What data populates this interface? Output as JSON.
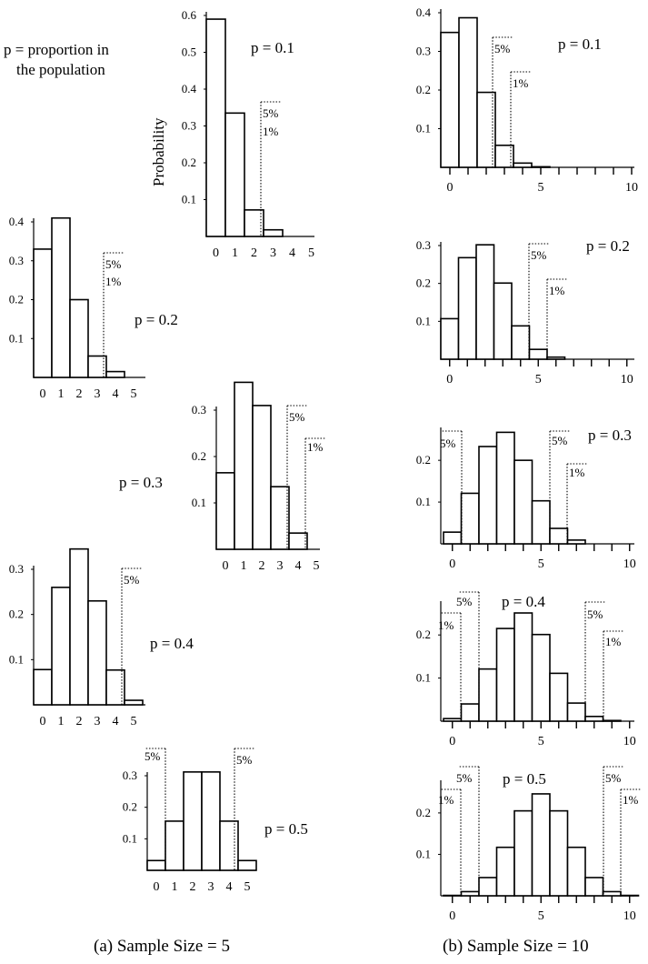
{
  "note": {
    "line1": "p = proportion in",
    "line2": "the population"
  },
  "ylabel": "Probability",
  "captions": {
    "a": "(a) Sample Size = 5",
    "b": "(b) Sample Size = 10"
  },
  "chart_data": [
    {
      "type": "bar",
      "n": 5,
      "p_label": "p = 0.1",
      "categories": [
        0,
        1,
        2,
        3,
        4,
        5
      ],
      "values": [
        0.59,
        0.335,
        0.072,
        0.018,
        0.0,
        0.0
      ],
      "yticks": [
        "0.1",
        "0.2",
        "0.3",
        "0.4",
        "0.5",
        "0.6"
      ],
      "ymax": 0.6,
      "xticks": [
        "0",
        "1",
        "2",
        "3",
        "4",
        "5"
      ],
      "cutoffs": [
        {
          "side": "right",
          "labels": [
            "5%",
            "1%"
          ]
        }
      ]
    },
    {
      "type": "bar",
      "n": 5,
      "p_label": "p = 0.2",
      "categories": [
        0,
        1,
        2,
        3,
        4,
        5
      ],
      "values": [
        0.33,
        0.41,
        0.2,
        0.055,
        0.015,
        0.0
      ],
      "yticks": [
        "0.1",
        "0.2",
        "0.3",
        "0.4"
      ],
      "ymax": 0.4,
      "xticks": [
        "0",
        "1",
        "2",
        "3",
        "4",
        "5"
      ],
      "cutoffs": [
        {
          "side": "right",
          "labels": [
            "5%",
            "1%"
          ]
        }
      ]
    },
    {
      "type": "bar",
      "n": 5,
      "p_label": "p = 0.3",
      "categories": [
        0,
        1,
        2,
        3,
        4,
        5
      ],
      "values": [
        0.165,
        0.36,
        0.31,
        0.135,
        0.035,
        0.0
      ],
      "yticks": [
        "0.1",
        "0.2",
        "0.3"
      ],
      "ymax": 0.3,
      "xticks": [
        "0",
        "1",
        "2",
        "3",
        "4",
        "5"
      ],
      "cutoffs": [
        {
          "side": "right",
          "labels": [
            "5%"
          ]
        },
        {
          "side": "right",
          "labels": [
            "1%"
          ]
        }
      ]
    },
    {
      "type": "bar",
      "n": 5,
      "p_label": "p = 0.4",
      "categories": [
        0,
        1,
        2,
        3,
        4,
        5
      ],
      "values": [
        0.078,
        0.26,
        0.345,
        0.23,
        0.077,
        0.01
      ],
      "yticks": [
        "0.1",
        "0.2",
        "0.3"
      ],
      "ymax": 0.3,
      "xticks": [
        "0",
        "1",
        "2",
        "3",
        "4",
        "5"
      ],
      "cutoffs": [
        {
          "side": "right",
          "labels": [
            "5%"
          ]
        }
      ]
    },
    {
      "type": "bar",
      "n": 5,
      "p_label": "p = 0.5",
      "categories": [
        0,
        1,
        2,
        3,
        4,
        5
      ],
      "values": [
        0.031,
        0.156,
        0.312,
        0.312,
        0.156,
        0.031
      ],
      "yticks": [
        "0.1",
        "0.2",
        "0.3"
      ],
      "ymax": 0.3,
      "xticks": [
        "0",
        "1",
        "2",
        "3",
        "4",
        "5"
      ],
      "cutoffs": [
        {
          "side": "left",
          "labels": [
            "5%"
          ]
        },
        {
          "side": "right",
          "labels": [
            "5%"
          ]
        }
      ]
    },
    {
      "type": "bar",
      "n": 10,
      "p_label": "p = 0.1",
      "categories": [
        0,
        1,
        2,
        3,
        4,
        5,
        6,
        7,
        8,
        9,
        10
      ],
      "values": [
        0.349,
        0.387,
        0.194,
        0.057,
        0.011,
        0.0015,
        0,
        0,
        0,
        0,
        0
      ],
      "yticks": [
        "0.1",
        "0.2",
        "0.3",
        "0.4"
      ],
      "ymax": 0.4,
      "xticks": [
        "0",
        "5",
        "10"
      ],
      "cutoffs": [
        {
          "side": "right",
          "labels": [
            "5%"
          ]
        },
        {
          "side": "right",
          "labels": [
            "1%"
          ]
        }
      ]
    },
    {
      "type": "bar",
      "n": 10,
      "p_label": "p = 0.2",
      "categories": [
        0,
        1,
        2,
        3,
        4,
        5,
        6,
        7,
        8,
        9,
        10
      ],
      "values": [
        0.107,
        0.268,
        0.302,
        0.201,
        0.088,
        0.026,
        0.0055,
        0,
        0,
        0,
        0
      ],
      "yticks": [
        "0.1",
        "0.2",
        "0.3"
      ],
      "ymax": 0.3,
      "xticks": [
        "0",
        "5",
        "10"
      ],
      "cutoffs": [
        {
          "side": "right",
          "labels": [
            "5%"
          ]
        },
        {
          "side": "right",
          "labels": [
            "1%"
          ]
        }
      ]
    },
    {
      "type": "bar",
      "n": 10,
      "p_label": "p = 0.3",
      "categories": [
        0,
        1,
        2,
        3,
        4,
        5,
        6,
        7,
        8,
        9,
        10
      ],
      "values": [
        0.028,
        0.121,
        0.233,
        0.267,
        0.2,
        0.103,
        0.037,
        0.009,
        0,
        0,
        0
      ],
      "yticks": [
        "0.1",
        "0.2"
      ],
      "ymax": 0.27,
      "xticks": [
        "0",
        "5",
        "10"
      ],
      "cutoffs": [
        {
          "side": "left",
          "labels": [
            "5%"
          ]
        },
        {
          "side": "right",
          "labels": [
            "5%"
          ]
        },
        {
          "side": "right",
          "labels": [
            "1%"
          ]
        }
      ]
    },
    {
      "type": "bar",
      "n": 10,
      "p_label": "p = 0.4",
      "categories": [
        0,
        1,
        2,
        3,
        4,
        5,
        6,
        7,
        8,
        9,
        10
      ],
      "values": [
        0.006,
        0.04,
        0.121,
        0.215,
        0.251,
        0.201,
        0.111,
        0.042,
        0.011,
        0.0016,
        0
      ],
      "yticks": [
        "0.1",
        "0.2"
      ],
      "ymax": 0.27,
      "xticks": [
        "0",
        "5",
        "10"
      ],
      "cutoffs": [
        {
          "side": "left",
          "labels": [
            "1%"
          ]
        },
        {
          "side": "left",
          "labels": [
            "5%"
          ]
        },
        {
          "side": "right",
          "labels": [
            "5%"
          ]
        },
        {
          "side": "right",
          "labels": [
            "1%"
          ]
        }
      ]
    },
    {
      "type": "bar",
      "n": 10,
      "p_label": "p = 0.5",
      "categories": [
        0,
        1,
        2,
        3,
        4,
        5,
        6,
        7,
        8,
        9,
        10
      ],
      "values": [
        0.001,
        0.01,
        0.044,
        0.117,
        0.205,
        0.246,
        0.205,
        0.117,
        0.044,
        0.01,
        0.001
      ],
      "yticks": [
        "0.1",
        "0.2"
      ],
      "ymax": 0.27,
      "xticks": [
        "0",
        "5",
        "10"
      ],
      "cutoffs": [
        {
          "side": "left",
          "labels": [
            "1%"
          ]
        },
        {
          "side": "left",
          "labels": [
            "5%"
          ]
        },
        {
          "side": "right",
          "labels": [
            "5%"
          ]
        },
        {
          "side": "right",
          "labels": [
            "1%"
          ]
        }
      ]
    }
  ]
}
